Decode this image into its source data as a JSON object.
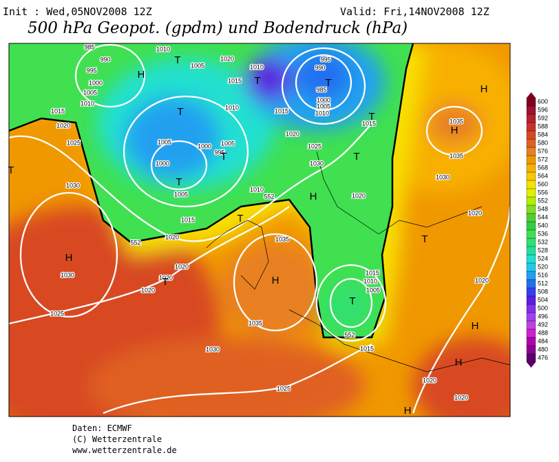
{
  "header": {
    "init": "Init : Wed,05NOV2008 12Z",
    "valid": "Valid: Fri,14NOV2008 12Z",
    "title": "500 hPa Geopot. (gpdm) und Bodendruck (hPa)"
  },
  "isobar_labels": [
    "985",
    "990",
    "995",
    "1000",
    "1005",
    "1010",
    "1015",
    "1020",
    "1025",
    "1030",
    "1010",
    "1005",
    "1020",
    "1015",
    "1010",
    "1010",
    "1015",
    "995",
    "990",
    "985",
    "1000",
    "1005",
    "1010",
    "1015",
    "1020",
    "1025",
    "1030",
    "1005",
    "1000",
    "1005",
    "995",
    "1000",
    "1005",
    "1010",
    "1015",
    "1020",
    "1020",
    "1020",
    "1020",
    "1030",
    "1025",
    "1030",
    "1035",
    "1035",
    "1025",
    "1020",
    "1035",
    "1035",
    "1030",
    "1020",
    "1020",
    "1015",
    "1010",
    "1005",
    "1015",
    "1020",
    "1020",
    "552",
    "552",
    "552"
  ],
  "pressure_centers": [
    "H",
    "T",
    "T",
    "T",
    "T",
    "T",
    "T",
    "T",
    "T",
    "H",
    "T",
    "H",
    "T",
    "H",
    "T",
    "T",
    "H",
    "H",
    "H",
    "H",
    "T",
    "H"
  ],
  "colorbar": {
    "levels": [
      476,
      480,
      484,
      488,
      492,
      496,
      500,
      504,
      508,
      512,
      516,
      520,
      524,
      528,
      532,
      536,
      540,
      544,
      548,
      552,
      556,
      560,
      564,
      568,
      572,
      576,
      580,
      584,
      588,
      592,
      596,
      600
    ],
    "colors": [
      "#5a0070",
      "#8a0090",
      "#b000b0",
      "#d020d0",
      "#c040e0",
      "#a040f0",
      "#8030f0",
      "#5a20e0",
      "#3040f0",
      "#2070f0",
      "#20a0f0",
      "#20c8f0",
      "#20e0d0",
      "#20e0a0",
      "#30e070",
      "#40e050",
      "#30d040",
      "#50d030",
      "#80e020",
      "#b0f000",
      "#e0f000",
      "#f8e000",
      "#f8c800",
      "#f8b000",
      "#f09800",
      "#e88020",
      "#e06020",
      "#d84820",
      "#c83030",
      "#b82030",
      "#a01030",
      "#800020"
    ]
  },
  "footer": [
    "Daten: ECMWF",
    "(C) Wetterzentrale",
    "www.wetterzentrale.de"
  ]
}
